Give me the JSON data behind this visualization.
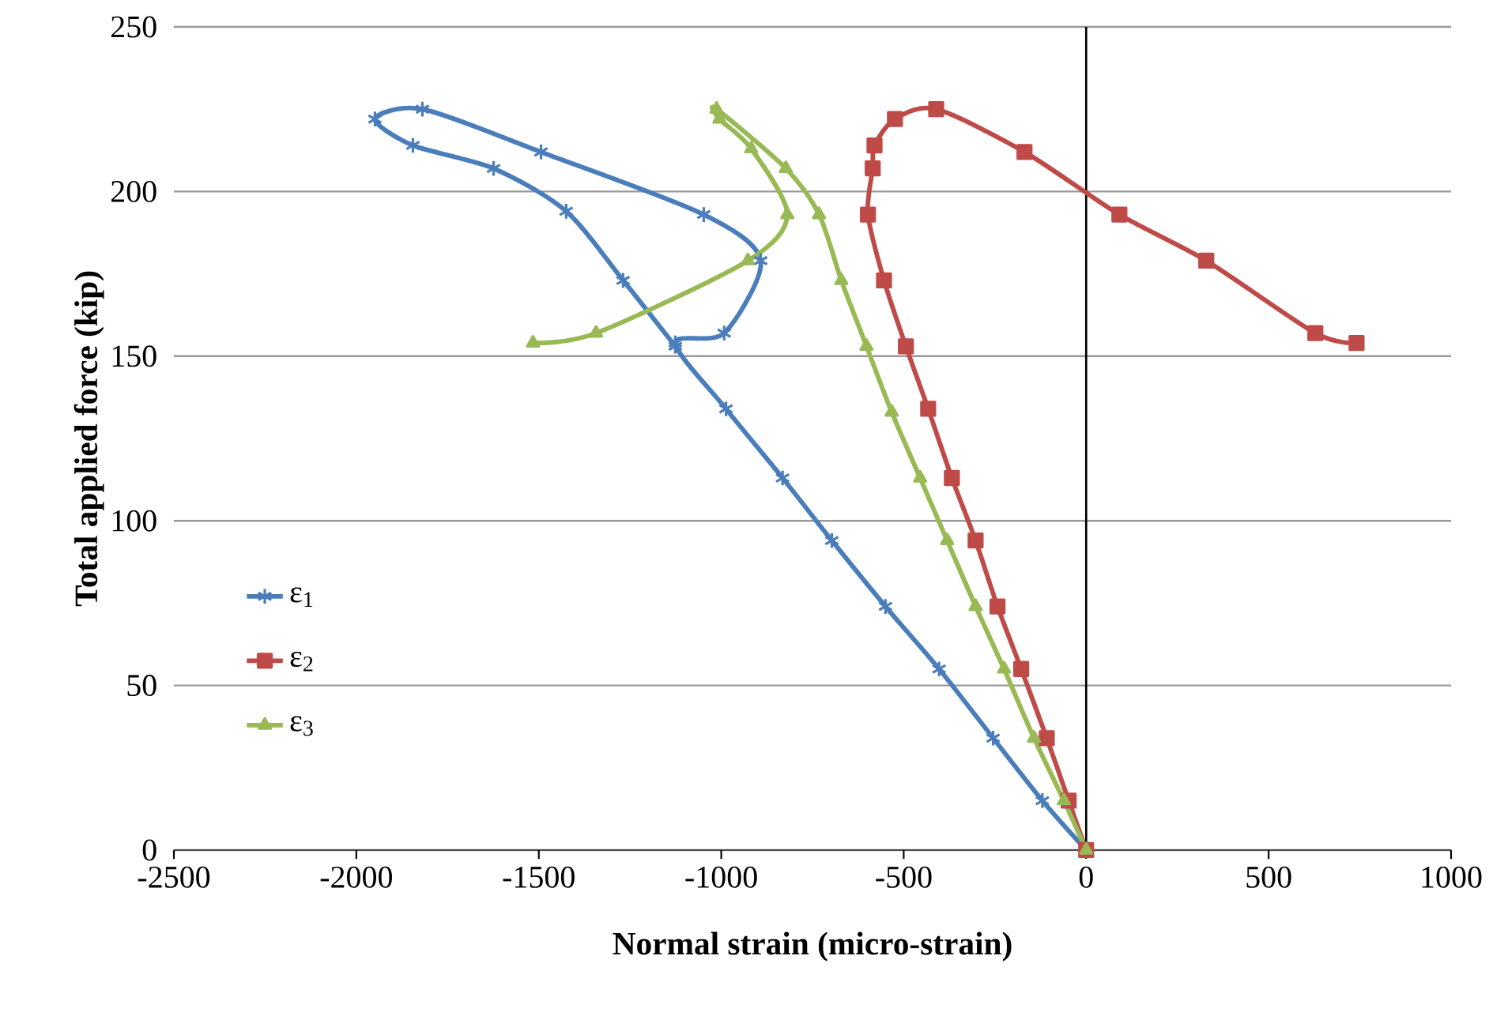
{
  "chart_data": {
    "type": "line",
    "xlabel": "Normal strain (micro-strain)",
    "ylabel": "Total applied force (kip)",
    "xlim": [
      -2500,
      1000
    ],
    "xticks": [
      -2500,
      -2000,
      -1500,
      -1000,
      -500,
      0,
      500,
      1000
    ],
    "ylim": [
      0,
      250
    ],
    "yticks": [
      0,
      50,
      100,
      150,
      200,
      250
    ],
    "grid": "y",
    "legend": "left",
    "ref_lines": [
      {
        "axis": "x",
        "value": 0,
        "color": "#000000"
      }
    ],
    "series": [
      {
        "name": "ε$_{1}$",
        "color": "#4a7ebb",
        "marker": "cross",
        "x": [
          0,
          -120,
          -255,
          -403,
          -550,
          -697,
          -832,
          -987,
          -1126,
          -992,
          -892,
          -1048,
          -1494,
          -1819,
          -1949,
          -1845,
          -1624,
          -1425,
          -1269,
          -1126
        ],
        "values": [
          0,
          15,
          34,
          55,
          74,
          94,
          113,
          134,
          154,
          157,
          179,
          193,
          212,
          225,
          222,
          214,
          207,
          194,
          173,
          153
        ]
      },
      {
        "name": "ε$_{2}$",
        "color": "#be4b48",
        "marker": "square",
        "x": [
          0,
          -48,
          -108,
          -178,
          -243,
          -303,
          -368,
          -433,
          -494,
          -554,
          -598,
          -585,
          -580,
          -524,
          -411,
          -169,
          91,
          329,
          628,
          741
        ],
        "values": [
          0,
          15,
          34,
          55,
          74,
          94,
          113,
          134,
          153,
          173,
          193,
          207,
          214,
          222,
          225,
          212,
          193,
          179,
          157,
          154
        ]
      },
      {
        "name": "ε$_{3}$",
        "color": "#98b954",
        "marker": "triangle",
        "x": [
          0,
          -61,
          -143,
          -225,
          -303,
          -381,
          -455,
          -533,
          -602,
          -671,
          -732,
          -823,
          -1013,
          -1005,
          -918,
          -819,
          -927,
          -1343,
          -1516
        ],
        "values": [
          0,
          15,
          34,
          55,
          74,
          94,
          113,
          133,
          153,
          173,
          193,
          207,
          225,
          222,
          213,
          193,
          179,
          157,
          154
        ]
      }
    ]
  }
}
